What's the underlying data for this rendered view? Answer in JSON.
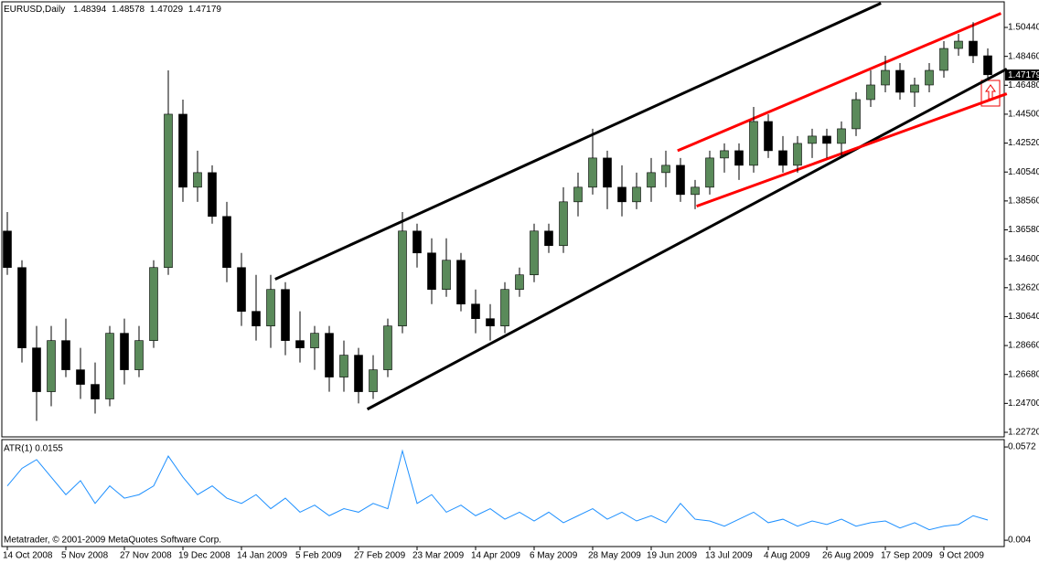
{
  "chart_data": [
    {
      "type": "candlestick",
      "title": "EURUSD,Daily",
      "quote": [
        1.48394,
        1.48578,
        1.47029,
        1.47179
      ],
      "last_price": 1.47179,
      "bull_color": "#5a8a5a",
      "bear_color": "#000000",
      "ylim": [
        1.22407,
        1.52193
      ],
      "yticks": [
        {
          "value": 1.2272,
          "label": "1.22720"
        },
        {
          "value": 1.247,
          "label": "1.24700"
        },
        {
          "value": 1.2668,
          "label": "1.26680"
        },
        {
          "value": 1.2866,
          "label": "1.28660"
        },
        {
          "value": 1.3064,
          "label": "1.30640"
        },
        {
          "value": 1.3262,
          "label": "1.32620"
        },
        {
          "value": 1.346,
          "label": "1.34600"
        },
        {
          "value": 1.3658,
          "label": "1.36580"
        },
        {
          "value": 1.3856,
          "label": "1.38560"
        },
        {
          "value": 1.4054,
          "label": "1.40540"
        },
        {
          "value": 1.4252,
          "label": "1.42520"
        },
        {
          "value": 1.445,
          "label": "1.44500"
        },
        {
          "value": 1.4648,
          "label": "1.46480"
        },
        {
          "value": 1.4846,
          "label": "1.48460"
        },
        {
          "value": 1.5044,
          "label": "1.50440"
        }
      ],
      "x_labels": [
        {
          "value": 0,
          "label": "14 Oct 2008"
        },
        {
          "value": 4,
          "label": "5 Nov 2008"
        },
        {
          "value": 8,
          "label": "27 Nov 2008"
        },
        {
          "value": 12,
          "label": "19 Dec 2008"
        },
        {
          "value": 16,
          "label": "14 Jan 2009"
        },
        {
          "value": 20,
          "label": "5 Feb 2009"
        },
        {
          "value": 24,
          "label": "27 Feb 2009"
        },
        {
          "value": 28,
          "label": "23 Mar 2009"
        },
        {
          "value": 32,
          "label": "14 Apr 2009"
        },
        {
          "value": 36,
          "label": "6 May 2009"
        },
        {
          "value": 40,
          "label": "28 May 2009"
        },
        {
          "value": 44,
          "label": "19 Jun 2009"
        },
        {
          "value": 48,
          "label": "13 Jul 2009"
        },
        {
          "value": 52,
          "label": "4 Aug 2009"
        },
        {
          "value": 56,
          "label": "26 Aug 2009"
        },
        {
          "value": 60,
          "label": "17 Sep 2009"
        },
        {
          "value": 64,
          "label": "9 Oct 2009"
        }
      ],
      "open": [
        1.365,
        1.34,
        1.285,
        1.255,
        1.29,
        1.27,
        1.26,
        1.25,
        1.295,
        1.27,
        1.29,
        1.34,
        1.445,
        1.395,
        1.405,
        1.375,
        1.34,
        1.31,
        1.3,
        1.325,
        1.29,
        1.285,
        1.295,
        1.265,
        1.28,
        1.255,
        1.27,
        1.3,
        1.365,
        1.35,
        1.325,
        1.345,
        1.315,
        1.305,
        1.3,
        1.325,
        1.335,
        1.365,
        1.355,
        1.385,
        1.395,
        1.415,
        1.395,
        1.385,
        1.395,
        1.405,
        1.41,
        1.39,
        1.395,
        1.415,
        1.42,
        1.41,
        1.44,
        1.42,
        1.41,
        1.425,
        1.43,
        1.425,
        1.435,
        1.455,
        1.465,
        1.475,
        1.46,
        1.465,
        1.475,
        1.49,
        1.495,
        1.485
      ],
      "high": [
        1.378,
        1.345,
        1.3,
        1.3,
        1.305,
        1.285,
        1.275,
        1.3,
        1.305,
        1.3,
        1.345,
        1.475,
        1.455,
        1.42,
        1.41,
        1.385,
        1.35,
        1.335,
        1.335,
        1.33,
        1.31,
        1.3,
        1.3,
        1.29,
        1.285,
        1.28,
        1.305,
        1.378,
        1.37,
        1.36,
        1.36,
        1.35,
        1.325,
        1.315,
        1.33,
        1.34,
        1.37,
        1.37,
        1.395,
        1.405,
        1.435,
        1.42,
        1.41,
        1.405,
        1.415,
        1.42,
        1.415,
        1.4,
        1.42,
        1.425,
        1.425,
        1.45,
        1.445,
        1.43,
        1.43,
        1.435,
        1.435,
        1.44,
        1.46,
        1.475,
        1.485,
        1.48,
        1.47,
        1.48,
        1.495,
        1.5,
        1.508,
        1.49
      ],
      "low": [
        1.335,
        1.275,
        1.235,
        1.245,
        1.265,
        1.25,
        1.24,
        1.245,
        1.26,
        1.265,
        1.285,
        1.335,
        1.385,
        1.385,
        1.37,
        1.33,
        1.3,
        1.29,
        1.285,
        1.28,
        1.275,
        1.27,
        1.255,
        1.255,
        1.247,
        1.25,
        1.265,
        1.295,
        1.34,
        1.315,
        1.32,
        1.31,
        1.295,
        1.29,
        1.295,
        1.32,
        1.33,
        1.35,
        1.35,
        1.375,
        1.39,
        1.38,
        1.375,
        1.38,
        1.385,
        1.395,
        1.385,
        1.38,
        1.39,
        1.405,
        1.4,
        1.405,
        1.415,
        1.405,
        1.405,
        1.415,
        1.415,
        1.415,
        1.43,
        1.45,
        1.46,
        1.455,
        1.45,
        1.46,
        1.47,
        1.485,
        1.48,
        1.47
      ],
      "close": [
        1.34,
        1.285,
        1.255,
        1.29,
        1.27,
        1.26,
        1.25,
        1.295,
        1.27,
        1.29,
        1.34,
        1.445,
        1.395,
        1.405,
        1.375,
        1.34,
        1.31,
        1.3,
        1.325,
        1.29,
        1.285,
        1.295,
        1.265,
        1.28,
        1.255,
        1.27,
        1.3,
        1.365,
        1.35,
        1.325,
        1.345,
        1.315,
        1.305,
        1.3,
        1.325,
        1.335,
        1.365,
        1.355,
        1.385,
        1.395,
        1.415,
        1.395,
        1.385,
        1.395,
        1.405,
        1.41,
        1.39,
        1.395,
        1.415,
        1.42,
        1.41,
        1.44,
        1.42,
        1.41,
        1.425,
        1.43,
        1.425,
        1.435,
        1.455,
        1.465,
        1.475,
        1.46,
        1.465,
        1.475,
        1.49,
        1.495,
        1.485,
        1.472
      ],
      "trendlines": [
        {
          "color": "#000000",
          "points": [
            [
              18.3,
              1.332
            ],
            [
              59.7,
              1.521
            ]
          ]
        },
        {
          "color": "#000000",
          "points": [
            [
              24.6,
              1.243
            ],
            [
              68.3,
              1.476
            ]
          ]
        },
        {
          "color": "#ff0000",
          "points": [
            [
              45.8,
              1.42
            ],
            [
              67.9,
              1.514
            ]
          ]
        },
        {
          "color": "#ff0000",
          "points": [
            [
              47.1,
              1.382
            ],
            [
              68.3,
              1.459
            ]
          ]
        }
      ]
    },
    {
      "type": "line",
      "title": "ATR(1) 0.0155",
      "color": "#1e90ff",
      "ylim": [
        0.0004,
        0.0614
      ],
      "yticks": [
        0.0572,
        0.004
      ],
      "values": [
        0.035,
        0.045,
        0.05,
        0.04,
        0.03,
        0.038,
        0.025,
        0.035,
        0.028,
        0.03,
        0.035,
        0.052,
        0.04,
        0.03,
        0.035,
        0.028,
        0.025,
        0.03,
        0.022,
        0.028,
        0.02,
        0.024,
        0.018,
        0.022,
        0.02,
        0.025,
        0.022,
        0.055,
        0.025,
        0.03,
        0.02,
        0.024,
        0.018,
        0.022,
        0.016,
        0.02,
        0.015,
        0.02,
        0.014,
        0.018,
        0.022,
        0.016,
        0.02,
        0.015,
        0.018,
        0.014,
        0.025,
        0.016,
        0.015,
        0.012,
        0.016,
        0.02,
        0.014,
        0.016,
        0.012,
        0.015,
        0.013,
        0.016,
        0.012,
        0.014,
        0.015,
        0.011,
        0.014,
        0.01,
        0.012,
        0.013,
        0.018,
        0.0155
      ]
    }
  ],
  "footer": "Metatrader, © 2001-2009 MetaQuotes Software Corp."
}
